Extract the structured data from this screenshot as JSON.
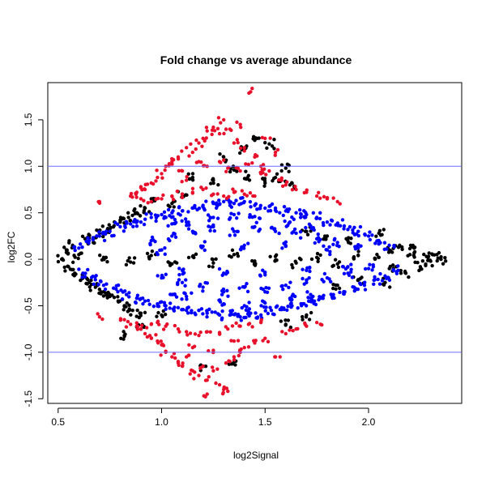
{
  "chart_data": {
    "type": "scatter",
    "title": "Fold change vs average abundance",
    "xlabel": "log2Signal",
    "ylabel": "log2FC",
    "xlim": [
      0.45,
      2.45
    ],
    "ylim": [
      -1.55,
      1.9
    ],
    "x_ticks": [
      0.5,
      1.0,
      1.5,
      2.0
    ],
    "x_tick_labels": [
      "0.5",
      "1.0",
      "1.5",
      "2.0"
    ],
    "y_ticks": [
      -1.5,
      -1.0,
      -0.5,
      0.0,
      0.5,
      1.0,
      1.5
    ],
    "y_tick_labels": [
      "-1.5",
      "-1.0",
      "-0.5",
      "0.0",
      "0.5",
      "1.0",
      "1.5"
    ],
    "hlines": [
      1.0,
      -1.0
    ],
    "grid": false,
    "legend": "none",
    "colors": {
      "not_significant": "#000000",
      "significant": "#0000ff",
      "fold_change_beyond_threshold": "#e8102a",
      "threshold_line": "#6b6bff"
    },
    "series": [
      {
        "points": [
          [
            0.52,
            0.0
          ],
          [
            0.54,
            0.1
          ],
          [
            0.55,
            -0.08
          ],
          [
            0.57,
            0.15
          ],
          [
            0.58,
            -0.15
          ],
          [
            0.6,
            0.05
          ],
          [
            0.62,
            -0.2
          ],
          [
            0.63,
            0.22
          ],
          [
            0.65,
            -0.25
          ],
          [
            0.67,
            0.18
          ],
          [
            0.68,
            -0.3
          ],
          [
            0.7,
            0.28
          ],
          [
            0.72,
            -0.35
          ],
          [
            0.74,
            0.33
          ],
          [
            0.75,
            -0.4
          ],
          [
            0.77,
            0.36
          ],
          [
            0.79,
            -0.45
          ],
          [
            0.8,
            0.4
          ],
          [
            0.82,
            -0.5
          ],
          [
            0.84,
            0.45
          ],
          [
            0.86,
            -0.55
          ],
          [
            0.88,
            0.5
          ],
          [
            0.9,
            -0.58
          ],
          [
            0.92,
            0.55
          ],
          [
            0.72,
            0.02
          ],
          [
            0.85,
            -0.03
          ],
          [
            0.95,
            0.04
          ],
          [
            1.05,
            -0.05
          ],
          [
            1.15,
            0.03
          ],
          [
            1.25,
            -0.04
          ],
          [
            1.35,
            0.05
          ],
          [
            1.45,
            -0.02
          ],
          [
            1.55,
            0.03
          ],
          [
            1.65,
            -0.04
          ],
          [
            1.75,
            0.02
          ],
          [
            1.85,
            -0.05
          ],
          [
            1.95,
            0.04
          ],
          [
            2.05,
            0.02
          ],
          [
            2.1,
            0.1
          ],
          [
            2.12,
            -0.1
          ],
          [
            2.15,
            0.15
          ],
          [
            2.18,
            -0.15
          ],
          [
            2.2,
            0.05
          ],
          [
            2.22,
            0.12
          ],
          [
            2.25,
            -0.08
          ],
          [
            2.28,
            0.03
          ],
          [
            2.3,
            -0.02
          ],
          [
            2.33,
            0.05
          ],
          [
            2.35,
            0.0
          ],
          [
            2.05,
            0.28
          ],
          [
            2.08,
            -0.25
          ],
          [
            1.9,
            0.2
          ],
          [
            1.95,
            -0.22
          ],
          [
            1.8,
            0.25
          ],
          [
            1.85,
            -0.28
          ],
          [
            1.7,
            0.3
          ],
          [
            1.4,
            1.18
          ],
          [
            1.45,
            1.28
          ],
          [
            1.52,
            1.24
          ],
          [
            1.6,
            0.98
          ],
          [
            1.3,
            1.1
          ],
          [
            1.35,
            0.96
          ],
          [
            1.42,
            0.9
          ],
          [
            1.55,
            0.88
          ],
          [
            0.82,
            -0.82
          ],
          [
            0.9,
            -0.75
          ],
          [
            1.0,
            -0.6
          ],
          [
            1.05,
            0.6
          ],
          [
            0.95,
            0.65
          ],
          [
            1.1,
            0.7
          ],
          [
            1.6,
            -0.7
          ],
          [
            1.7,
            -0.6
          ],
          [
            1.2,
            -1.15
          ],
          [
            1.35,
            -1.1
          ],
          [
            1.5,
            0.82
          ],
          [
            1.62,
            0.8
          ],
          [
            1.15,
            0.88
          ],
          [
            1.25,
            0.85
          ]
        ]
      },
      {
        "points": [
          [
            0.6,
            0.12
          ],
          [
            0.62,
            -0.15
          ],
          [
            0.65,
            0.2
          ],
          [
            0.68,
            -0.22
          ],
          [
            0.7,
            0.25
          ],
          [
            0.72,
            -0.28
          ],
          [
            0.75,
            0.3
          ],
          [
            0.78,
            -0.32
          ],
          [
            0.8,
            0.35
          ],
          [
            0.83,
            -0.38
          ],
          [
            0.85,
            0.38
          ],
          [
            0.88,
            -0.42
          ],
          [
            0.9,
            0.4
          ],
          [
            0.92,
            -0.45
          ],
          [
            0.95,
            0.45
          ],
          [
            0.98,
            -0.48
          ],
          [
            1.0,
            0.48
          ],
          [
            1.02,
            -0.5
          ],
          [
            1.05,
            0.5
          ],
          [
            1.08,
            -0.52
          ],
          [
            1.1,
            0.52
          ],
          [
            1.12,
            -0.55
          ],
          [
            1.15,
            0.55
          ],
          [
            1.18,
            -0.55
          ],
          [
            1.2,
            0.58
          ],
          [
            1.22,
            -0.58
          ],
          [
            1.25,
            0.6
          ],
          [
            1.28,
            -0.6
          ],
          [
            1.3,
            0.62
          ],
          [
            1.33,
            -0.6
          ],
          [
            1.35,
            0.6
          ],
          [
            1.38,
            -0.62
          ],
          [
            1.4,
            0.62
          ],
          [
            1.43,
            -0.58
          ],
          [
            1.45,
            0.58
          ],
          [
            1.48,
            -0.6
          ],
          [
            1.5,
            0.55
          ],
          [
            1.53,
            -0.55
          ],
          [
            1.55,
            0.55
          ],
          [
            1.58,
            -0.52
          ],
          [
            1.6,
            0.52
          ],
          [
            1.63,
            -0.5
          ],
          [
            1.65,
            0.5
          ],
          [
            1.68,
            -0.48
          ],
          [
            1.7,
            0.48
          ],
          [
            1.73,
            -0.45
          ],
          [
            1.75,
            0.45
          ],
          [
            1.78,
            -0.42
          ],
          [
            1.8,
            0.4
          ],
          [
            1.83,
            -0.38
          ],
          [
            1.85,
            0.38
          ],
          [
            1.88,
            -0.35
          ],
          [
            1.9,
            0.32
          ],
          [
            1.93,
            -0.3
          ],
          [
            1.95,
            0.3
          ],
          [
            1.98,
            -0.28
          ],
          [
            2.0,
            0.25
          ],
          [
            2.03,
            -0.22
          ],
          [
            2.05,
            0.2
          ],
          [
            2.08,
            -0.18
          ],
          [
            2.1,
            0.15
          ],
          [
            2.12,
            -0.12
          ],
          [
            0.95,
            0.2
          ],
          [
            1.0,
            -0.2
          ],
          [
            1.05,
            0.25
          ],
          [
            1.1,
            -0.25
          ],
          [
            1.15,
            0.3
          ],
          [
            1.2,
            -0.3
          ],
          [
            1.25,
            0.35
          ],
          [
            1.3,
            -0.35
          ],
          [
            1.35,
            0.3
          ],
          [
            1.4,
            -0.3
          ],
          [
            1.45,
            0.35
          ],
          [
            1.5,
            -0.35
          ],
          [
            1.55,
            0.3
          ],
          [
            1.6,
            -0.28
          ],
          [
            1.65,
            0.28
          ],
          [
            1.7,
            -0.25
          ],
          [
            1.75,
            0.22
          ],
          [
            1.8,
            -0.2
          ],
          [
            1.85,
            0.18
          ],
          [
            1.9,
            -0.15
          ],
          [
            1.95,
            0.12
          ],
          [
            2.0,
            -0.1
          ],
          [
            1.0,
            0.1
          ],
          [
            1.1,
            -0.12
          ],
          [
            1.2,
            0.14
          ],
          [
            1.3,
            -0.15
          ],
          [
            1.4,
            0.15
          ],
          [
            1.5,
            -0.14
          ],
          [
            1.6,
            0.14
          ],
          [
            1.7,
            -0.12
          ],
          [
            1.8,
            0.1
          ],
          [
            1.9,
            -0.08
          ],
          [
            1.25,
            0.45
          ],
          [
            1.35,
            0.48
          ],
          [
            1.45,
            0.46
          ],
          [
            1.3,
            -0.48
          ],
          [
            1.4,
            -0.5
          ],
          [
            1.5,
            -0.47
          ],
          [
            1.62,
            0.4
          ],
          [
            1.72,
            0.36
          ],
          [
            1.62,
            -0.42
          ],
          [
            1.72,
            -0.38
          ],
          [
            1.12,
            0.4
          ],
          [
            1.12,
            -0.4
          ],
          [
            1.05,
            0.38
          ],
          [
            1.05,
            -0.38
          ]
        ]
      },
      {
        "points": [
          [
            0.85,
            0.68
          ],
          [
            0.88,
            0.72
          ],
          [
            0.9,
            0.78
          ],
          [
            0.92,
            0.75
          ],
          [
            0.95,
            0.82
          ],
          [
            0.98,
            0.88
          ],
          [
            1.0,
            0.92
          ],
          [
            1.02,
            1.0
          ],
          [
            1.05,
            1.05
          ],
          [
            1.08,
            1.1
          ],
          [
            1.1,
            0.95
          ],
          [
            1.12,
            1.2
          ],
          [
            1.15,
            1.15
          ],
          [
            1.18,
            1.25
          ],
          [
            1.2,
            1.3
          ],
          [
            1.22,
            1.38
          ],
          [
            1.25,
            1.42
          ],
          [
            1.28,
            1.35
          ],
          [
            1.3,
            1.5
          ],
          [
            1.33,
            1.4
          ],
          [
            1.35,
            1.25
          ],
          [
            1.38,
            1.45
          ],
          [
            1.4,
            1.2
          ],
          [
            1.43,
            1.8
          ],
          [
            1.45,
            1.1
          ],
          [
            1.48,
            1.0
          ],
          [
            1.5,
            1.3
          ],
          [
            1.52,
            0.95
          ],
          [
            1.55,
            1.15
          ],
          [
            1.58,
            0.85
          ],
          [
            1.6,
            0.8
          ],
          [
            1.65,
            0.75
          ],
          [
            1.7,
            0.72
          ],
          [
            1.75,
            0.68
          ],
          [
            1.8,
            0.65
          ],
          [
            1.85,
            0.62
          ],
          [
            1.1,
            0.7
          ],
          [
            1.15,
            0.72
          ],
          [
            1.2,
            0.75
          ],
          [
            1.25,
            0.7
          ],
          [
            1.3,
            0.68
          ],
          [
            1.35,
            0.72
          ],
          [
            1.4,
            0.7
          ],
          [
            1.45,
            0.68
          ],
          [
            1.0,
            0.65
          ],
          [
            1.05,
            0.68
          ],
          [
            0.95,
            0.62
          ],
          [
            0.9,
            0.65
          ],
          [
            1.18,
            1.05
          ],
          [
            1.22,
            1.0
          ],
          [
            1.28,
            1.05
          ],
          [
            1.32,
            0.98
          ],
          [
            1.38,
            0.95
          ],
          [
            1.42,
            1.02
          ],
          [
            1.48,
            0.92
          ],
          [
            1.12,
            0.85
          ],
          [
            0.7,
            0.62
          ],
          [
            0.7,
            -0.62
          ],
          [
            0.82,
            -0.65
          ],
          [
            0.85,
            -0.7
          ],
          [
            0.88,
            -0.72
          ],
          [
            0.9,
            -0.75
          ],
          [
            0.92,
            -0.8
          ],
          [
            0.95,
            -0.85
          ],
          [
            0.98,
            -0.88
          ],
          [
            1.0,
            -0.92
          ],
          [
            1.02,
            -1.0
          ],
          [
            1.05,
            -1.05
          ],
          [
            1.08,
            -1.1
          ],
          [
            1.1,
            -1.15
          ],
          [
            1.12,
            -1.05
          ],
          [
            1.15,
            -1.2
          ],
          [
            1.18,
            -1.25
          ],
          [
            1.2,
            -1.15
          ],
          [
            1.22,
            -1.3
          ],
          [
            1.25,
            -1.2
          ],
          [
            1.28,
            -1.35
          ],
          [
            1.3,
            -1.4
          ],
          [
            1.33,
            -1.1
          ],
          [
            1.35,
            -1.05
          ],
          [
            1.38,
            -1.0
          ],
          [
            1.4,
            -0.95
          ],
          [
            1.45,
            -0.9
          ],
          [
            1.5,
            -0.85
          ],
          [
            1.55,
            -1.05
          ],
          [
            1.6,
            -0.8
          ],
          [
            1.65,
            -0.75
          ],
          [
            1.7,
            -0.72
          ],
          [
            1.75,
            -0.68
          ],
          [
            1.22,
            -1.45
          ],
          [
            1.32,
            -1.42
          ],
          [
            1.08,
            -0.75
          ],
          [
            1.12,
            -0.78
          ],
          [
            1.18,
            -0.82
          ],
          [
            1.22,
            -0.78
          ],
          [
            1.28,
            -0.8
          ],
          [
            1.32,
            -0.75
          ],
          [
            1.38,
            -0.72
          ],
          [
            1.42,
            -0.7
          ],
          [
            1.48,
            -0.68
          ],
          [
            1.02,
            -0.72
          ],
          [
            0.98,
            -0.68
          ],
          [
            0.95,
            -0.7
          ],
          [
            1.15,
            -0.95
          ],
          [
            1.25,
            -0.98
          ],
          [
            1.35,
            -0.88
          ]
        ]
      }
    ]
  }
}
